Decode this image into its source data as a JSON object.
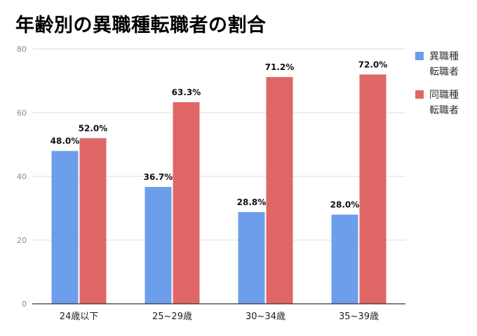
{
  "title": "年齢別の異職種転職者の割合",
  "chart_data": {
    "type": "bar",
    "title": "年齢別の異職種転職者の割合",
    "categories": [
      "24歳以下",
      "25~29歳",
      "30~34歳",
      "35~39歳"
    ],
    "series": [
      {
        "name": "異職種転職者",
        "color": "#6d9eeb",
        "values": [
          48.0,
          36.7,
          28.8,
          28.0
        ],
        "labels": [
          "48.0%",
          "36.7%",
          "28.8%",
          "28.0%"
        ]
      },
      {
        "name": "同職種転職者",
        "color": "#e06666",
        "values": [
          52.0,
          63.3,
          71.2,
          72.0
        ],
        "labels": [
          "52.0%",
          "63.3%",
          "71.2%",
          "72.0%"
        ]
      }
    ],
    "ylim": [
      0,
      80
    ],
    "yticks": [
      0,
      20,
      40,
      60,
      80
    ],
    "xlabel": "",
    "ylabel": "",
    "grid": true,
    "legend": "right"
  }
}
